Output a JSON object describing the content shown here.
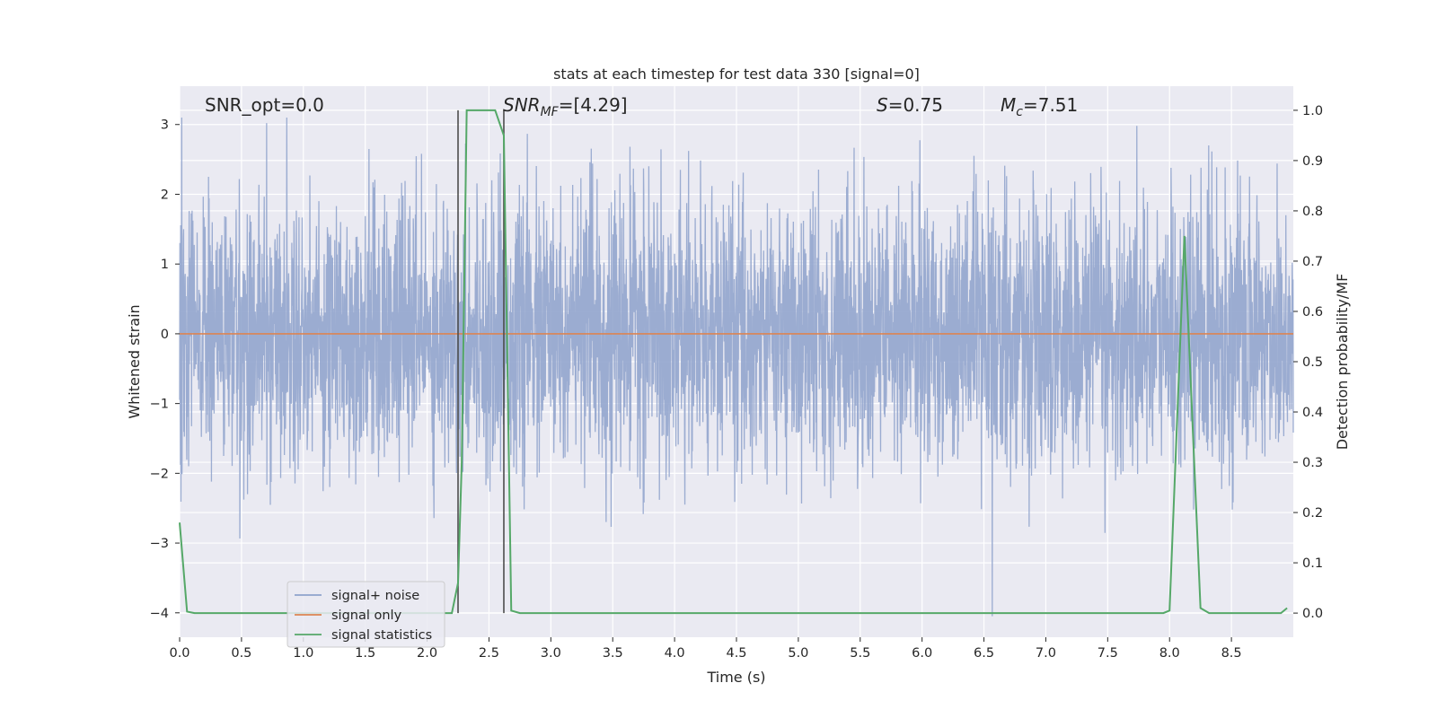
{
  "chart_data": {
    "type": "line",
    "title": "stats at each timestep for test data 330 [signal=0]",
    "xlabel": "Time (s)",
    "ylabel_left": "Whitened strain",
    "ylabel_right": "Detection probability/MF",
    "xlim": [
      0,
      9.0
    ],
    "ylim_left": [
      -4.35,
      3.55
    ],
    "ylim_right": [
      -0.048,
      1.048
    ],
    "x_ticks": [
      "0.0",
      "0.5",
      "1.0",
      "1.5",
      "2.0",
      "2.5",
      "3.0",
      "3.5",
      "4.0",
      "4.5",
      "5.0",
      "5.5",
      "6.0",
      "6.5",
      "7.0",
      "7.5",
      "8.0",
      "8.5"
    ],
    "y_left_ticks": [
      "3",
      "2",
      "1",
      "0",
      "−1",
      "−2",
      "−3",
      "−4"
    ],
    "y_right_ticks": [
      "1.0",
      "0.9",
      "0.8",
      "0.7",
      "0.6",
      "0.5",
      "0.4",
      "0.3",
      "0.2",
      "0.1",
      "0.0"
    ],
    "annotations": {
      "snr_opt": "SNR_opt=0.0",
      "snr_mf_sym": "SNR",
      "snr_mf_sub": "MF",
      "snr_mf_val": "=[4.29]",
      "s_sym": "S",
      "s_val": "=0.75",
      "mc_sym": "M",
      "mc_sub": "c",
      "mc_val": "=7.51"
    },
    "legend": {
      "position": "lower-left",
      "entries": [
        "signal+ noise",
        "signal only",
        "signal statistics"
      ]
    },
    "series": [
      {
        "name": "signal+ noise",
        "axis": "left",
        "kind": "noise",
        "x_range": [
          0,
          9.0
        ],
        "y_range": [
          -4.05,
          3.1
        ],
        "color": "#8fa3cc"
      },
      {
        "name": "signal only",
        "axis": "left",
        "x": [
          0,
          9.0
        ],
        "y": [
          0,
          0
        ],
        "color": "#dd8452"
      },
      {
        "name": "signal statistics",
        "axis": "right",
        "color": "#55a868",
        "x": [
          0.0,
          0.06,
          0.12,
          0.2,
          2.2,
          2.25,
          2.28,
          2.32,
          2.55,
          2.62,
          2.68,
          2.75,
          7.95,
          8.0,
          8.12,
          8.25,
          8.32,
          8.9,
          8.95
        ],
        "y": [
          0.18,
          0.003,
          0.0,
          0.0,
          0.0,
          0.06,
          0.3,
          1.0,
          1.0,
          0.95,
          0.005,
          0.0,
          0.0,
          0.005,
          0.75,
          0.01,
          0.0,
          0.0,
          0.01
        ]
      }
    ],
    "vlines": [
      2.25,
      2.62
    ],
    "grid": true
  }
}
